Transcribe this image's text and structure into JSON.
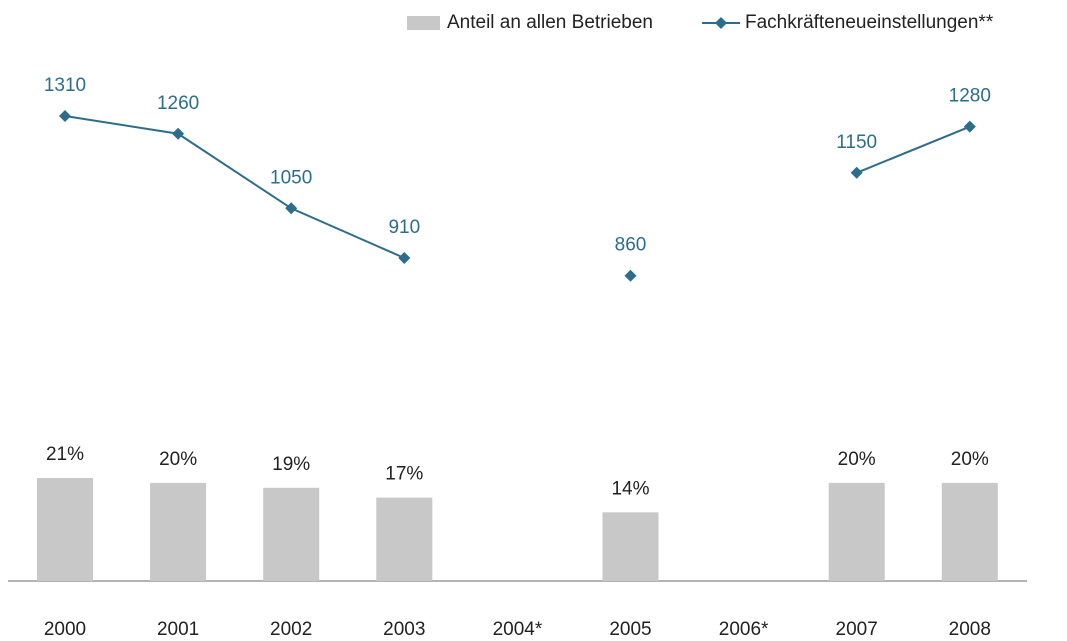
{
  "chart_data": {
    "type": "bar_line",
    "categories": [
      "2000",
      "2001",
      "2002",
      "2003",
      "2004*",
      "2005",
      "2006*",
      "2007",
      "2008"
    ],
    "series": [
      {
        "name": "Anteil an allen Betrieben",
        "type": "bar",
        "color": "#c8c8c8",
        "values": [
          21,
          20,
          19,
          17,
          null,
          14,
          null,
          20,
          20
        ],
        "value_labels": [
          "21%",
          "20%",
          "19%",
          "17%",
          null,
          "14%",
          null,
          "20%",
          "20%"
        ]
      },
      {
        "name": "Fachkräfteneueinstellungen**",
        "type": "line",
        "axis": "y2",
        "color": "#2d6d8c",
        "values": [
          1310,
          1260,
          1050,
          910,
          null,
          860,
          null,
          1150,
          1280
        ]
      }
    ],
    "legend": "top-right"
  }
}
